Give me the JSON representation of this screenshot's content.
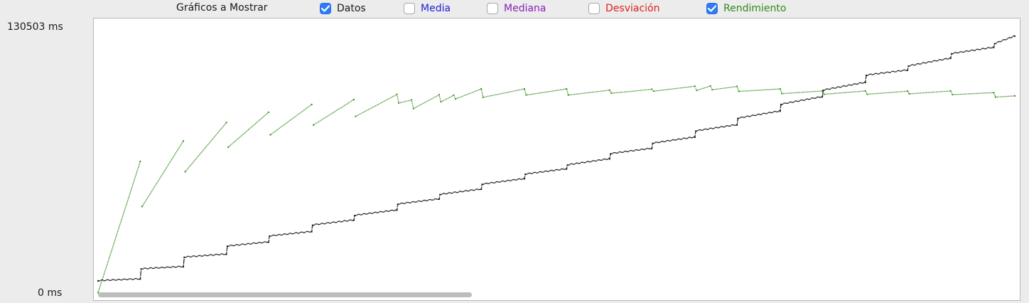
{
  "toolbar": {
    "label": "Gráficos a Mostrar",
    "options": [
      {
        "label": "Datos",
        "checked": true,
        "color": "#1a1a1a"
      },
      {
        "label": "Media",
        "checked": false,
        "color": "#1f1fd6"
      },
      {
        "label": "Mediana",
        "checked": false,
        "color": "#8a1fb8"
      },
      {
        "label": "Desviación",
        "checked": false,
        "color": "#e01f1f"
      },
      {
        "label": "Rendimiento",
        "checked": true,
        "color": "#2f8a1a"
      }
    ]
  },
  "chart_data": {
    "type": "scatter",
    "y_axis": {
      "min_label": "0 ms",
      "max_label": "130503 ms",
      "range": [
        0,
        130503
      ]
    },
    "x_range": [
      0,
      1
    ],
    "series": [
      {
        "color": "#1a1a1a",
        "x": [
          0.0,
          0.046,
          0.047,
          0.093,
          0.094,
          0.14,
          0.141,
          0.186,
          0.187,
          0.233,
          0.234,
          0.279,
          0.28,
          0.326,
          0.327,
          0.372,
          0.373,
          0.418,
          0.419,
          0.465,
          0.466,
          0.511,
          0.512,
          0.558,
          0.559,
          0.604,
          0.605,
          0.651,
          0.652,
          0.697,
          0.698,
          0.744,
          0.745,
          0.79,
          0.791,
          0.837,
          0.838,
          0.883,
          0.884,
          0.93,
          0.931,
          0.977,
          0.978,
          1.0
        ],
        "y": [
          8700,
          9600,
          14500,
          15600,
          20200,
          21700,
          25600,
          27600,
          30500,
          32700,
          35900,
          38300,
          40600,
          43200,
          46100,
          48600,
          50800,
          53400,
          55800,
          58500,
          60700,
          63300,
          65200,
          68200,
          70700,
          73300,
          75800,
          78800,
          81800,
          84800,
          88000,
          91500,
          94800,
          98500,
          101700,
          105500,
          109000,
          111500,
          113500,
          117300,
          119500,
          122600,
          124400,
          128100
        ]
      },
      {
        "color": "#2f8a1a",
        "x": [
          0.0,
          0.046,
          0.048,
          0.093,
          0.095,
          0.14,
          0.142,
          0.186,
          0.188,
          0.233,
          0.235,
          0.279,
          0.281,
          0.326,
          0.328,
          0.342,
          0.344,
          0.372,
          0.374,
          0.388,
          0.39,
          0.418,
          0.42,
          0.465,
          0.467,
          0.511,
          0.513,
          0.558,
          0.56,
          0.604,
          0.606,
          0.651,
          0.653,
          0.668,
          0.67,
          0.697,
          0.699,
          0.744,
          0.746,
          0.79,
          0.792,
          0.837,
          0.839,
          0.883,
          0.885,
          0.93,
          0.932,
          0.977,
          0.979,
          1.0
        ],
        "y": [
          3000,
          67000,
          45000,
          77000,
          62000,
          86000,
          74000,
          91000,
          80000,
          94800,
          84800,
          97200,
          89000,
          99700,
          95500,
          97000,
          92800,
          99500,
          96100,
          99300,
          97500,
          102400,
          98300,
          102400,
          99400,
          102400,
          99400,
          101800,
          100300,
          102200,
          101300,
          103700,
          101700,
          103800,
          102000,
          103600,
          101200,
          102400,
          100100,
          101400,
          99800,
          101400,
          99800,
          101300,
          100000,
          101400,
          99600,
          100600,
          98400,
          99000
        ]
      }
    ]
  }
}
